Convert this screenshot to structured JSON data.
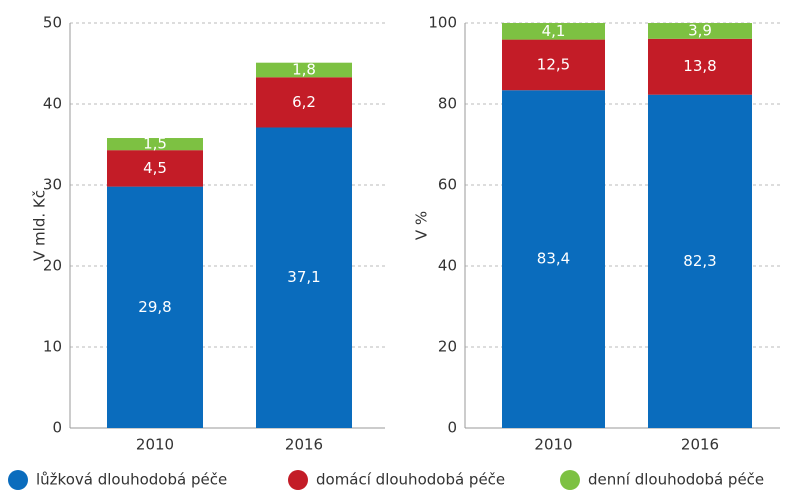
{
  "legend": [
    {
      "name": "lůžková dlouhodobá péče",
      "color": "#0a6cbd"
    },
    {
      "name": "domácí dlouhodobá péče",
      "color": "#c31c27"
    },
    {
      "name": "denní dlouhodobá péče",
      "color": "#7dc142"
    }
  ],
  "chart_data": [
    {
      "type": "stacked_bar",
      "y_label": "V mld. Kč",
      "categories": [
        "2010",
        "2016"
      ],
      "series": [
        {
          "values": [
            29.8,
            37.1
          ],
          "value_labels": [
            "29,8",
            "37,1"
          ]
        },
        {
          "values": [
            4.5,
            6.2
          ],
          "value_labels": [
            "4,5",
            "6,2"
          ]
        },
        {
          "values": [
            1.5,
            1.8
          ],
          "value_labels": [
            "1,5",
            "1,8"
          ]
        }
      ],
      "ylim": [
        0,
        50
      ],
      "yticks": [
        0,
        10,
        20,
        30,
        40,
        50
      ],
      "grid": true
    },
    {
      "type": "stacked_bar",
      "y_label": "V %",
      "categories": [
        "2010",
        "2016"
      ],
      "series": [
        {
          "values": [
            83.4,
            82.3
          ],
          "value_labels": [
            "83,4",
            "82,3"
          ]
        },
        {
          "values": [
            12.5,
            13.8
          ],
          "value_labels": [
            "12,5",
            "13,8"
          ]
        },
        {
          "values": [
            4.1,
            3.9
          ],
          "value_labels": [
            "4,1",
            "3,9"
          ]
        }
      ],
      "ylim": [
        0,
        100
      ],
      "yticks": [
        0,
        20,
        40,
        60,
        80,
        100
      ],
      "grid": true
    }
  ]
}
